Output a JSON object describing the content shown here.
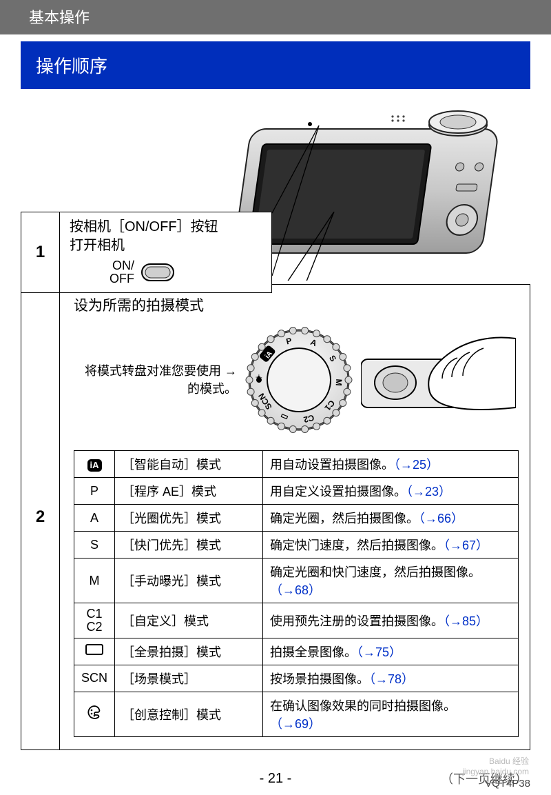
{
  "header": {
    "chapter_title": "基本操作"
  },
  "section_title": "操作顺序",
  "step1": {
    "number": "1",
    "line1": "按相机［ON/OFF］按钮",
    "line2": "打开相机",
    "onoff_label_line1": "ON/",
    "onoff_label_line2": "OFF"
  },
  "step2": {
    "number": "2",
    "title": "设为所需的拍摄模式",
    "hint_line1": "将模式转盘对准您要使用 →",
    "hint_line2": "的模式。"
  },
  "dial": {
    "labels": [
      "iA",
      "P",
      "A",
      "S",
      "M",
      "C1",
      "C2",
      "▭",
      "SCN",
      "✦"
    ]
  },
  "mode_table": {
    "ref_color": "#0030c8",
    "rows": [
      {
        "icon_html": "ia_badge",
        "icon_text": "iA",
        "name": "［智能自动］模式",
        "desc_pre": "用自动设置拍摄图像。",
        "ref": "（→25）"
      },
      {
        "icon_text": "P",
        "name": "［程序 AE］模式",
        "desc_pre": "用自定义设置拍摄图像。",
        "ref": "（→23）"
      },
      {
        "icon_text": "A",
        "name": "［光圈优先］模式",
        "desc_pre": "确定光圈，然后拍摄图像。",
        "ref": "（→66）"
      },
      {
        "icon_text": "S",
        "name": "［快门优先］模式",
        "desc_pre": "确定快门速度，然后拍摄图像。",
        "ref": "（→67）"
      },
      {
        "icon_text": "M",
        "name": "［手动曝光］模式",
        "desc_pre": "确定光圈和快门速度，然后拍摄图像。",
        "ref": "（→68）",
        "wrap": true
      },
      {
        "icon_text": "C1\nC2",
        "name": "［自定义］模式",
        "desc_pre": "使用预先注册的设置拍摄图像。",
        "ref": "（→85）"
      },
      {
        "icon_html": "pano",
        "name": "［全景拍摄］模式",
        "desc_pre": "拍摄全景图像。",
        "ref": "（→75）"
      },
      {
        "icon_text": "SCN",
        "name": "［场景模式］",
        "desc_pre": "按场景拍摄图像。",
        "ref": "（→78）"
      },
      {
        "icon_html": "palette",
        "name": "［创意控制］模式",
        "desc_pre": "在确认图像效果的同时拍摄图像。",
        "ref": "（→69）",
        "wrap": true
      }
    ]
  },
  "footer": {
    "page_number": "- 21 -",
    "continue_note": "（下一页继续）",
    "doc_code": "VQT4P38",
    "watermark_l1": "Baidu 经验",
    "watermark_l2": "jingyan.baidu.com"
  },
  "colors": {
    "header_bg": "#6f6f6f",
    "title_bg": "#002ebb",
    "border": "#000000",
    "ref_link": "#0030c8"
  }
}
